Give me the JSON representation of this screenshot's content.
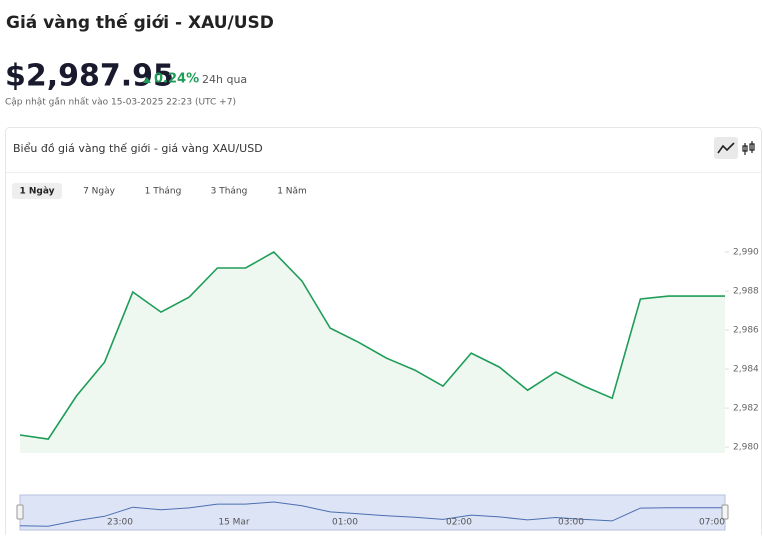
{
  "header": {
    "title": "Giá vàng thế giới - XAU/USD",
    "price": "$2,987.95",
    "change": "0.24%",
    "period": "24h qua",
    "updated": "Cập nhật gần nhất vào 15-03-2025 22:23 (UTC +7)"
  },
  "card": {
    "title": "Biểu đồ giá vàng thế giới - giá vàng XAU/USD",
    "tabs": [
      "1 Ngày",
      "7 Ngày",
      "1 Tháng",
      "3 Tháng",
      "1 Năm"
    ]
  },
  "chart_data": {
    "type": "area",
    "categories": [
      null,
      null,
      null,
      null,
      null,
      null,
      null,
      null,
      null,
      null,
      null,
      null,
      null,
      null,
      null,
      null,
      null,
      null,
      null,
      null,
      null,
      null,
      null,
      null,
      null,
      null
    ],
    "values": [
      2980.62,
      2980.41,
      2982.62,
      2984.36,
      2987.95,
      2986.92,
      2987.69,
      2989.18,
      2989.18,
      2990.0,
      2988.51,
      2986.1,
      2985.38,
      2984.56,
      2983.95,
      2983.13,
      2984.82,
      2984.1,
      2982.92,
      2983.85,
      2983.13,
      2982.51,
      2987.59,
      2987.74,
      2987.74,
      2987.74
    ],
    "color": "#1f9d58",
    "fill_color": "#eef8f1",
    "ylim": [
      2979.7,
      2992
    ],
    "yticks": [
      {
        "value": 2980,
        "label": "2,980"
      },
      {
        "value": 2982,
        "label": "2,982"
      },
      {
        "value": 2984,
        "label": "2,984"
      },
      {
        "value": 2986,
        "label": "2,986"
      },
      {
        "value": 2988,
        "label": "2,988"
      },
      {
        "value": 2990,
        "label": "2,990"
      }
    ],
    "navigator_labels": [
      "23:00",
      "15 Mar",
      "01:00",
      "02:00",
      "03:00",
      "07:00"
    ]
  }
}
